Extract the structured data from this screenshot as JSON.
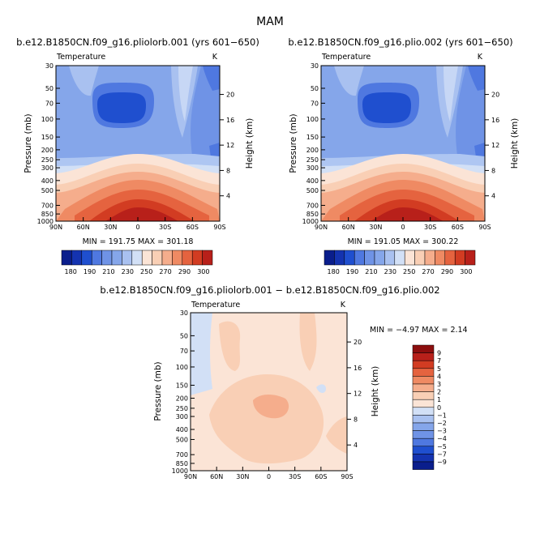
{
  "page": {
    "title": "MAM",
    "diff_title": "b.e12.B1850CN.f09_g16.pliolorb.001 − b.e12.B1850CN.f09_g16.plio.002"
  },
  "chart_data": [
    {
      "type": "heatmap",
      "title": "b.e12.B1850CN.f09_g16.pliolorb.001 (yrs 601−650)",
      "variable": "Temperature",
      "units": "K",
      "xlabel": "",
      "ylabel": "Pressure (mb)",
      "ylabel_right": "Height (km)",
      "x_ticks": [
        "90N",
        "60N",
        "30N",
        "0",
        "30S",
        "60S",
        "90S"
      ],
      "y_ticks": [
        30,
        50,
        70,
        100,
        150,
        200,
        250,
        300,
        400,
        500,
        700,
        850,
        1000
      ],
      "right_ticks": [
        20,
        16,
        12,
        8,
        4
      ],
      "y_scale": "log",
      "ylim": [
        1000,
        30
      ],
      "stats": "MIN = 191.75   MAX = 301.18",
      "min": 191.75,
      "max": 301.18,
      "levels": [
        180,
        190,
        200,
        210,
        220,
        230,
        240,
        250,
        260,
        270,
        280,
        290,
        300
      ],
      "colorbar_labels": [
        "180",
        "190",
        "210",
        "230",
        "250",
        "270",
        "290",
        "300"
      ],
      "colorbar_orientation": "horizontal"
    },
    {
      "type": "heatmap",
      "title": "b.e12.B1850CN.f09_g16.plio.002 (yrs 601−650)",
      "variable": "Temperature",
      "units": "K",
      "xlabel": "",
      "ylabel": "Pressure (mb)",
      "ylabel_right": "Height (km)",
      "x_ticks": [
        "90N",
        "60N",
        "30N",
        "0",
        "30S",
        "60S",
        "90S"
      ],
      "y_ticks": [
        30,
        50,
        70,
        100,
        150,
        200,
        250,
        300,
        400,
        500,
        700,
        850,
        1000
      ],
      "right_ticks": [
        20,
        16,
        12,
        8,
        4
      ],
      "y_scale": "log",
      "ylim": [
        1000,
        30
      ],
      "stats": "MIN = 191.05   MAX = 300.22",
      "min": 191.05,
      "max": 300.22,
      "levels": [
        180,
        190,
        200,
        210,
        220,
        230,
        240,
        250,
        260,
        270,
        280,
        290,
        300
      ],
      "colorbar_labels": [
        "180",
        "190",
        "210",
        "230",
        "250",
        "270",
        "290",
        "300"
      ],
      "colorbar_orientation": "horizontal"
    },
    {
      "type": "heatmap",
      "title": "b.e12.B1850CN.f09_g16.pliolorb.001 − b.e12.B1850CN.f09_g16.plio.002",
      "variable": "Temperature",
      "units": "K",
      "xlabel": "",
      "ylabel": "Pressure (mb)",
      "ylabel_right": "Height (km)",
      "x_ticks": [
        "90N",
        "60N",
        "30N",
        "0",
        "30S",
        "60S",
        "90S"
      ],
      "y_ticks": [
        30,
        50,
        70,
        100,
        150,
        200,
        250,
        300,
        400,
        500,
        700,
        850,
        1000
      ],
      "right_ticks": [
        20,
        16,
        12,
        8,
        4
      ],
      "y_scale": "log",
      "ylim": [
        1000,
        30
      ],
      "stats": "MIN =   −4.97   MAX =    2.14",
      "min": -4.97,
      "max": 2.14,
      "levels": [
        -9,
        -7,
        -5,
        -4,
        -3,
        -2,
        -1,
        0,
        1,
        2,
        3,
        4,
        5,
        7,
        9
      ],
      "colorbar_labels": [
        "9",
        "7",
        "5",
        "4",
        "3",
        "2",
        "1",
        "0",
        "−1",
        "−2",
        "−3",
        "−4",
        "−5",
        "−7",
        "−9"
      ],
      "colorbar_orientation": "vertical"
    }
  ]
}
